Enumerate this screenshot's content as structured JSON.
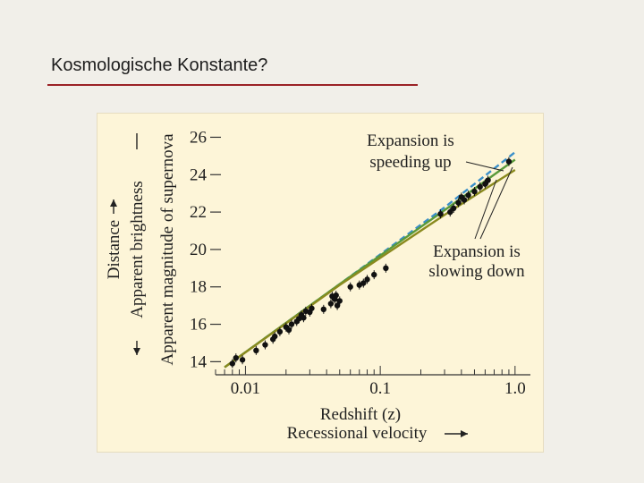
{
  "slide": {
    "title": "Kosmologische Konstante?"
  },
  "chart_data": {
    "type": "scatter",
    "y_axis": {
      "label_lines": [
        "Apparent magnitude of supernova",
        "Apparent brightness",
        "Distance"
      ],
      "ticks": [
        14,
        16,
        18,
        20,
        22,
        24,
        26
      ],
      "range": [
        13.3,
        26.5
      ]
    },
    "x_axis": {
      "scale": "log",
      "label_lines": [
        "Redshift (z)",
        "Recessional velocity"
      ],
      "ticks": [
        0.01,
        0.1,
        1.0
      ],
      "tick_labels": [
        "0.01",
        "0.1",
        "1.0"
      ],
      "range": [
        0.006,
        1.3
      ]
    },
    "annotations": [
      {
        "id": "speeding",
        "lines": [
          "Expansion is",
          "speeding up"
        ]
      },
      {
        "id": "slowing",
        "lines": [
          "Expansion is",
          "slowing down"
        ]
      }
    ],
    "series": [
      {
        "style": "dashed",
        "color": "#3a8fc9",
        "points": [
          [
            0.007,
            13.7
          ],
          [
            0.05,
            18.15
          ],
          [
            0.3,
            22.25
          ],
          [
            1.0,
            25.2
          ]
        ]
      },
      {
        "style": "solid",
        "color": "#5a9a3a",
        "points": [
          [
            0.007,
            13.7
          ],
          [
            0.05,
            18.15
          ],
          [
            0.3,
            22.1
          ],
          [
            1.0,
            24.8
          ]
        ]
      },
      {
        "style": "solid",
        "color": "#8a8a1e",
        "points": [
          [
            0.007,
            13.7
          ],
          [
            0.05,
            18.1
          ],
          [
            0.3,
            21.85
          ],
          [
            1.0,
            24.25
          ]
        ]
      }
    ],
    "points": [
      {
        "z": 0.0085,
        "m": 14.2
      },
      {
        "z": 0.008,
        "m": 13.9
      },
      {
        "z": 0.0095,
        "m": 14.1
      },
      {
        "z": 0.012,
        "m": 14.6
      },
      {
        "z": 0.014,
        "m": 14.9
      },
      {
        "z": 0.016,
        "m": 15.2
      },
      {
        "z": 0.0165,
        "m": 15.35
      },
      {
        "z": 0.018,
        "m": 15.6
      },
      {
        "z": 0.02,
        "m": 15.85
      },
      {
        "z": 0.021,
        "m": 15.7
      },
      {
        "z": 0.022,
        "m": 16.0
      },
      {
        "z": 0.024,
        "m": 16.15
      },
      {
        "z": 0.025,
        "m": 16.3
      },
      {
        "z": 0.026,
        "m": 16.5
      },
      {
        "z": 0.027,
        "m": 16.35
      },
      {
        "z": 0.028,
        "m": 16.7
      },
      {
        "z": 0.03,
        "m": 16.65
      },
      {
        "z": 0.031,
        "m": 16.85
      },
      {
        "z": 0.038,
        "m": 16.8
      },
      {
        "z": 0.043,
        "m": 17.1
      },
      {
        "z": 0.044,
        "m": 17.5
      },
      {
        "z": 0.046,
        "m": 17.35
      },
      {
        "z": 0.047,
        "m": 17.55
      },
      {
        "z": 0.048,
        "m": 17.0
      },
      {
        "z": 0.05,
        "m": 17.25
      },
      {
        "z": 0.06,
        "m": 18.0
      },
      {
        "z": 0.07,
        "m": 18.1
      },
      {
        "z": 0.075,
        "m": 18.2
      },
      {
        "z": 0.08,
        "m": 18.4
      },
      {
        "z": 0.09,
        "m": 18.65
      },
      {
        "z": 0.11,
        "m": 19.0
      },
      {
        "z": 0.28,
        "m": 21.9
      },
      {
        "z": 0.33,
        "m": 22.0
      },
      {
        "z": 0.35,
        "m": 22.2
      },
      {
        "z": 0.38,
        "m": 22.5
      },
      {
        "z": 0.4,
        "m": 22.8
      },
      {
        "z": 0.42,
        "m": 22.65
      },
      {
        "z": 0.45,
        "m": 22.9
      },
      {
        "z": 0.5,
        "m": 23.1
      },
      {
        "z": 0.55,
        "m": 23.35
      },
      {
        "z": 0.6,
        "m": 23.5
      },
      {
        "z": 0.63,
        "m": 23.7
      },
      {
        "z": 0.9,
        "m": 24.7
      }
    ]
  }
}
